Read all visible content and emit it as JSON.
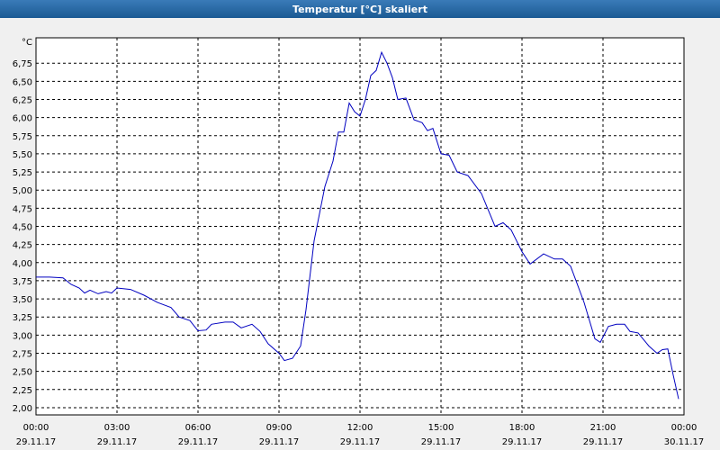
{
  "chart_data": {
    "type": "line",
    "title": "Temperatur [°C] skaliert",
    "y_unit": "°C",
    "x": [
      0,
      0.5,
      1.0,
      1.3,
      1.6,
      1.8,
      2.0,
      2.3,
      2.6,
      2.8,
      3.0,
      3.5,
      4.0,
      4.5,
      5.0,
      5.3,
      5.7,
      6.0,
      6.3,
      6.5,
      7.0,
      7.3,
      7.6,
      8.0,
      8.3,
      8.6,
      9.0,
      9.2,
      9.5,
      9.8,
      10.0,
      10.3,
      10.7,
      11.0,
      11.2,
      11.4,
      11.6,
      11.8,
      12.0,
      12.2,
      12.4,
      12.6,
      12.8,
      13.0,
      13.2,
      13.4,
      13.7,
      14.0,
      14.3,
      14.5,
      14.7,
      15.0,
      15.3,
      15.6,
      16.0,
      16.5,
      17.0,
      17.3,
      17.6,
      18.0,
      18.3,
      18.8,
      19.2,
      19.5,
      19.8,
      20.3,
      20.7,
      20.9,
      21.2,
      21.5,
      21.8,
      22.0,
      22.3,
      22.7,
      23.0,
      23.2,
      23.4,
      23.6,
      23.8
    ],
    "series": [
      {
        "name": "Temperatur",
        "color": "#0000c0",
        "values": [
          3.8,
          3.8,
          3.79,
          3.7,
          3.65,
          3.58,
          3.62,
          3.57,
          3.6,
          3.58,
          3.65,
          3.63,
          3.55,
          3.45,
          3.38,
          3.25,
          3.2,
          3.06,
          3.07,
          3.15,
          3.18,
          3.18,
          3.1,
          3.15,
          3.05,
          2.88,
          2.75,
          2.65,
          2.68,
          2.85,
          3.35,
          4.3,
          5.05,
          5.4,
          5.8,
          5.8,
          6.2,
          6.08,
          6.02,
          6.25,
          6.58,
          6.65,
          6.9,
          6.75,
          6.55,
          6.25,
          6.27,
          5.97,
          5.93,
          5.82,
          5.85,
          5.5,
          5.48,
          5.25,
          5.2,
          4.95,
          4.5,
          4.55,
          4.45,
          4.15,
          3.98,
          4.12,
          4.05,
          4.05,
          3.95,
          3.45,
          2.95,
          2.9,
          3.12,
          3.15,
          3.15,
          3.05,
          3.03,
          2.85,
          2.75,
          2.8,
          2.81,
          2.45,
          2.12
        ]
      }
    ],
    "xlim": [
      0,
      24
    ],
    "ylim": [
      1.9,
      7.1
    ],
    "xticks": [
      {
        "value": 0,
        "label": "00:00",
        "date": "29.11.17"
      },
      {
        "value": 3,
        "label": "03:00",
        "date": "29.11.17"
      },
      {
        "value": 6,
        "label": "06:00",
        "date": "29.11.17"
      },
      {
        "value": 9,
        "label": "09:00",
        "date": "29.11.17"
      },
      {
        "value": 12,
        "label": "12:00",
        "date": "29.11.17"
      },
      {
        "value": 15,
        "label": "15:00",
        "date": "29.11.17"
      },
      {
        "value": 18,
        "label": "18:00",
        "date": "29.11.17"
      },
      {
        "value": 21,
        "label": "21:00",
        "date": "29.11.17"
      },
      {
        "value": 24,
        "label": "00:00",
        "date": "30.11.17"
      }
    ],
    "yticks": [
      {
        "value": 2,
        "label": "2,00"
      },
      {
        "value": 2.25,
        "label": "2,25"
      },
      {
        "value": 2.5,
        "label": "2,50"
      },
      {
        "value": 2.75,
        "label": "2,75"
      },
      {
        "value": 3,
        "label": "3,00"
      },
      {
        "value": 3.25,
        "label": "3,25"
      },
      {
        "value": 3.5,
        "label": "3,50"
      },
      {
        "value": 3.75,
        "label": "3,75"
      },
      {
        "value": 4,
        "label": "4,00"
      },
      {
        "value": 4.25,
        "label": "4,25"
      },
      {
        "value": 4.5,
        "label": "4,50"
      },
      {
        "value": 4.75,
        "label": "4,75"
      },
      {
        "value": 5,
        "label": "5,00"
      },
      {
        "value": 5.25,
        "label": "5,25"
      },
      {
        "value": 5.5,
        "label": "5,50"
      },
      {
        "value": 5.75,
        "label": "5,75"
      },
      {
        "value": 6,
        "label": "6,00"
      },
      {
        "value": 6.25,
        "label": "6,25"
      },
      {
        "value": 6.5,
        "label": "6,50"
      },
      {
        "value": 6.75,
        "label": "6,75"
      }
    ],
    "grid": true
  }
}
